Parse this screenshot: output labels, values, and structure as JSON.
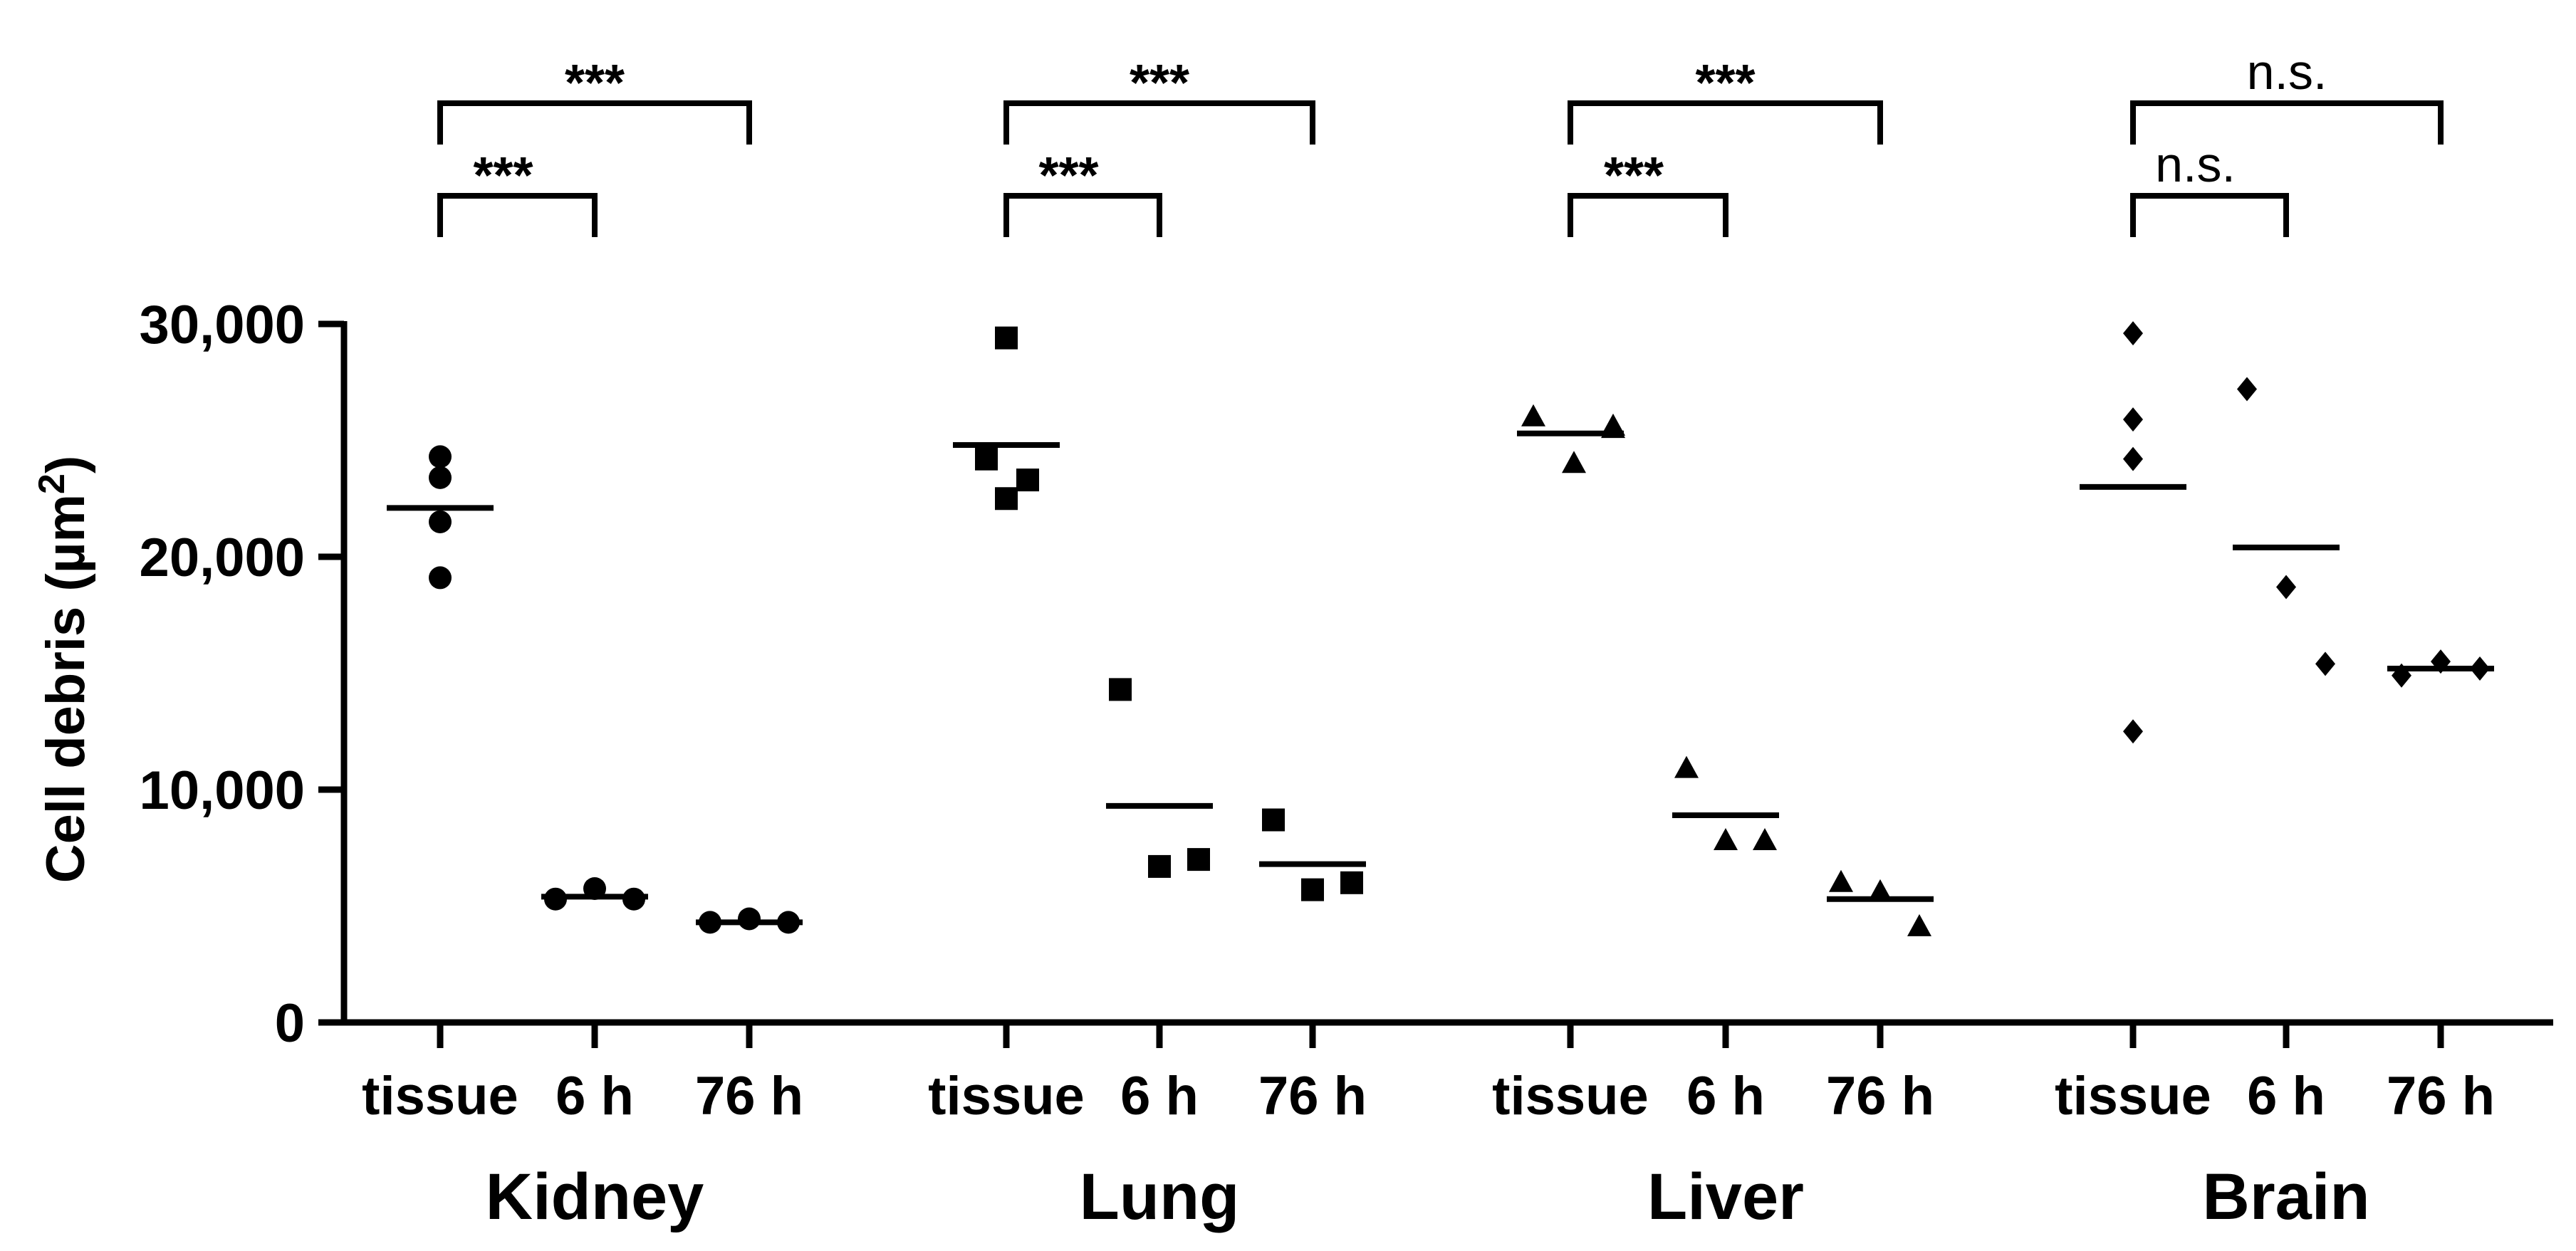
{
  "chart_data": {
    "type": "scatter",
    "ylabel": "Cell debris (µm²)",
    "ylabel_parts": {
      "main": "Cell debris (µm",
      "sup": "2",
      "close": ")"
    },
    "ylim": [
      0,
      30000
    ],
    "yticks": [
      0,
      10000,
      20000,
      30000
    ],
    "ytick_labels": [
      "0",
      "10,000",
      "20,000",
      "30,000"
    ],
    "groups": [
      {
        "name": "Kidney",
        "marker": "circle",
        "conditions": [
          {
            "label": "tissue",
            "mean": 22100,
            "points": [
              24300,
              23400,
              21500,
              19100
            ]
          },
          {
            "label": "6 h",
            "mean": 5400,
            "points": [
              5300,
              5750,
              5300
            ]
          },
          {
            "label": "76 h",
            "mean": 4300,
            "points": [
              4300,
              4450,
              4300
            ]
          }
        ],
        "comparisons": [
          {
            "from": 0,
            "to": 2,
            "label": "***",
            "level": 2
          },
          {
            "from": 0,
            "to": 1,
            "label": "***",
            "level": 1
          }
        ]
      },
      {
        "name": "Lung",
        "marker": "square",
        "conditions": [
          {
            "label": "tissue",
            "mean": 24800,
            "points": [
              29400,
              24200,
              23300,
              22500
            ]
          },
          {
            "label": "6 h",
            "mean": 9300,
            "points": [
              14300,
              6700,
              7000
            ]
          },
          {
            "label": "76 h",
            "mean": 6800,
            "points": [
              8700,
              5700,
              6000
            ]
          }
        ],
        "comparisons": [
          {
            "from": 0,
            "to": 2,
            "label": "***",
            "level": 2
          },
          {
            "from": 0,
            "to": 1,
            "label": "***",
            "level": 1
          }
        ]
      },
      {
        "name": "Liver",
        "marker": "triangle",
        "conditions": [
          {
            "label": "tissue",
            "mean": 25300,
            "points": [
              26000,
              24000,
              25500,
              25600
            ]
          },
          {
            "label": "6 h",
            "mean": 8900,
            "points": [
              10900,
              7800,
              7800
            ]
          },
          {
            "label": "76 h",
            "mean": 5300,
            "points": [
              6000,
              5600,
              4100
            ]
          }
        ],
        "comparisons": [
          {
            "from": 0,
            "to": 2,
            "label": "***",
            "level": 2
          },
          {
            "from": 0,
            "to": 1,
            "label": "***",
            "level": 1
          }
        ]
      },
      {
        "name": "Brain",
        "marker": "diamond",
        "conditions": [
          {
            "label": "tissue",
            "mean": 23000,
            "points": [
              29600,
              25900,
              24200,
              12500
            ]
          },
          {
            "label": "6 h",
            "mean": 20400,
            "points": [
              27200,
              18700,
              15400
            ]
          },
          {
            "label": "76 h",
            "mean": 15200,
            "points": [
              14900,
              15500,
              15200
            ]
          }
        ],
        "comparisons": [
          {
            "from": 0,
            "to": 2,
            "label": "n.s.",
            "level": 2
          },
          {
            "from": 0,
            "to": 1,
            "label": "n.s.",
            "level": 1
          }
        ]
      }
    ]
  }
}
